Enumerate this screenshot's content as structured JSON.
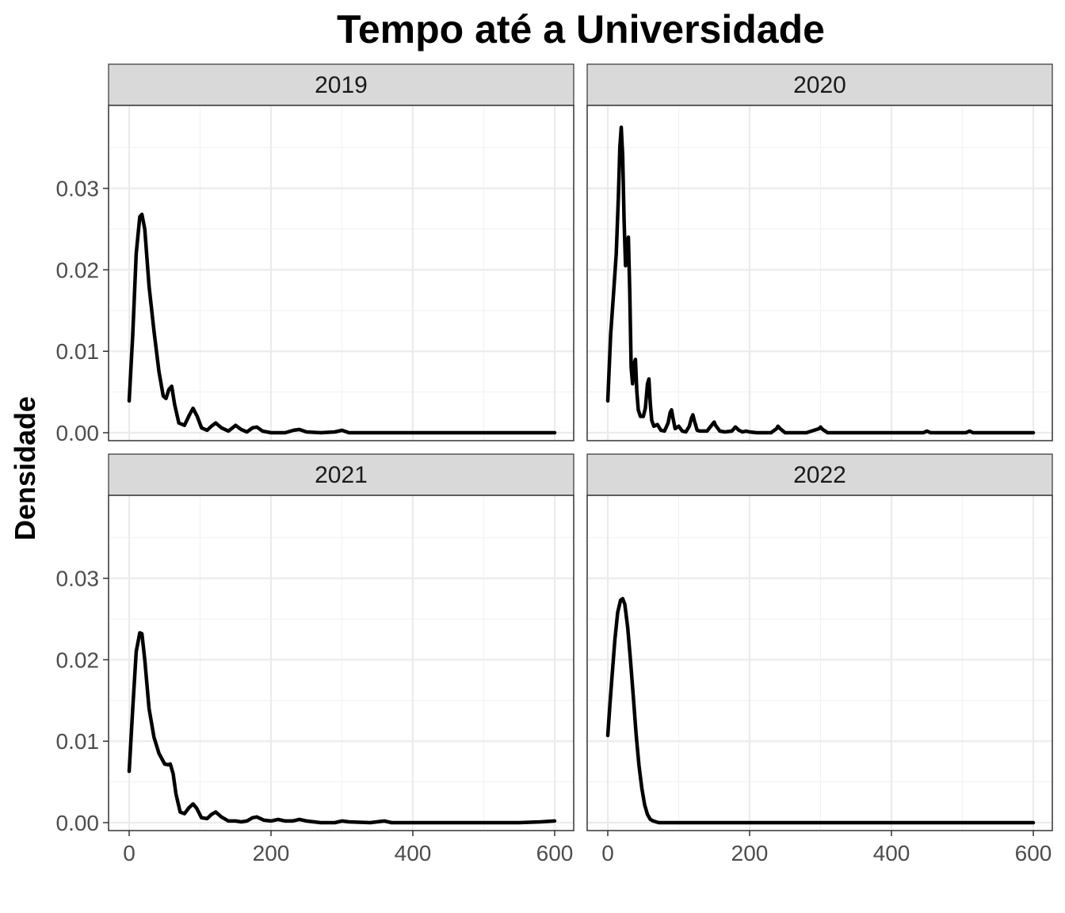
{
  "chart_data": {
    "type": "line",
    "title": "Tempo até a Universidade",
    "xlabel": "",
    "ylabel": "Densidade",
    "xlim": [
      0,
      600
    ],
    "ylim": [
      0,
      0.0385
    ],
    "x_ticks": [
      0,
      200,
      400,
      600
    ],
    "y_ticks": [
      0.0,
      0.01,
      0.02,
      0.03
    ],
    "x_tick_labels": [
      "0",
      "200",
      "400",
      "600"
    ],
    "y_tick_labels": [
      "0.00",
      "0.01",
      "0.02",
      "0.03"
    ],
    "grid": true,
    "theme": "bw",
    "line_color": "#000000",
    "panels": [
      {
        "label": "2019",
        "x": [
          0,
          5,
          10,
          15,
          18,
          22,
          28,
          35,
          42,
          48,
          52,
          56,
          60,
          64,
          70,
          78,
          85,
          90,
          96,
          102,
          110,
          116,
          122,
          130,
          140,
          150,
          158,
          166,
          174,
          180,
          188,
          200,
          220,
          232,
          240,
          250,
          270,
          290,
          300,
          310,
          330,
          360,
          400,
          450,
          500,
          550,
          600
        ],
        "y": [
          0.0039,
          0.012,
          0.022,
          0.0265,
          0.0268,
          0.025,
          0.018,
          0.0125,
          0.0075,
          0.0045,
          0.0042,
          0.0053,
          0.0057,
          0.0035,
          0.0012,
          0.0009,
          0.0022,
          0.003,
          0.002,
          0.0006,
          0.0003,
          0.0008,
          0.0012,
          0.0006,
          0.0002,
          0.0009,
          0.0004,
          0.0001,
          0.0006,
          0.0007,
          0.0002,
          0.0,
          0.0,
          0.0003,
          0.0004,
          0.0001,
          0.0,
          0.0001,
          0.0003,
          0.0,
          0.0,
          0.0,
          0.0,
          0.0,
          0.0,
          0.0,
          0.0
        ]
      },
      {
        "label": "2020",
        "x": [
          0,
          4,
          8,
          12,
          15,
          17,
          19,
          21,
          23,
          25,
          27,
          29,
          31,
          33,
          35,
          37,
          39,
          41,
          43,
          46,
          50,
          53,
          56,
          58,
          60,
          62,
          65,
          70,
          75,
          80,
          85,
          88,
          90,
          92,
          95,
          100,
          105,
          110,
          115,
          118,
          120,
          122,
          126,
          130,
          140,
          148,
          150,
          152,
          158,
          165,
          175,
          180,
          185,
          190,
          195,
          200,
          210,
          230,
          238,
          240,
          243,
          250,
          280,
          298,
          300,
          303,
          310,
          350,
          400,
          445,
          450,
          455,
          505,
          510,
          515,
          550,
          600
        ],
        "y": [
          0.0039,
          0.012,
          0.017,
          0.022,
          0.029,
          0.035,
          0.0375,
          0.034,
          0.026,
          0.0205,
          0.0235,
          0.024,
          0.0175,
          0.008,
          0.006,
          0.0085,
          0.009,
          0.005,
          0.0028,
          0.002,
          0.002,
          0.003,
          0.006,
          0.0066,
          0.0035,
          0.0015,
          0.0008,
          0.001,
          0.0003,
          0.0002,
          0.0012,
          0.0025,
          0.0028,
          0.0018,
          0.0005,
          0.0008,
          0.0002,
          0.0001,
          0.0008,
          0.0018,
          0.0022,
          0.0015,
          0.0003,
          0.0002,
          0.0002,
          0.0011,
          0.0013,
          0.0009,
          0.0002,
          0.0001,
          0.0002,
          0.0007,
          0.0003,
          0.0001,
          0.0002,
          0.0001,
          0.0,
          0.0,
          0.0005,
          0.0008,
          0.0005,
          0.0,
          0.0,
          0.0005,
          0.0007,
          0.0004,
          0.0,
          0.0,
          0.0,
          0.0,
          0.0002,
          0.0,
          0.0,
          0.0002,
          0.0,
          0.0,
          0.0
        ]
      },
      {
        "label": "2021",
        "x": [
          0,
          5,
          10,
          15,
          18,
          22,
          28,
          35,
          42,
          50,
          55,
          58,
          62,
          66,
          72,
          78,
          84,
          90,
          95,
          102,
          110,
          116,
          122,
          130,
          140,
          150,
          158,
          166,
          174,
          180,
          190,
          200,
          210,
          220,
          230,
          240,
          250,
          270,
          290,
          300,
          310,
          340,
          360,
          370,
          400,
          450,
          500,
          550,
          580,
          600
        ],
        "y": [
          0.0063,
          0.014,
          0.021,
          0.0233,
          0.0232,
          0.02,
          0.014,
          0.0105,
          0.0085,
          0.0072,
          0.0071,
          0.0072,
          0.006,
          0.0035,
          0.0013,
          0.0011,
          0.0018,
          0.0023,
          0.0018,
          0.0006,
          0.0005,
          0.001,
          0.0013,
          0.0007,
          0.0002,
          0.0002,
          0.0001,
          0.0002,
          0.0006,
          0.0007,
          0.0003,
          0.0002,
          0.0004,
          0.0002,
          0.0002,
          0.0004,
          0.0002,
          0.0,
          0.0,
          0.0002,
          0.0001,
          0.0,
          0.0002,
          0.0,
          0.0,
          0.0,
          0.0,
          0.0,
          0.0001,
          0.0002
        ]
      },
      {
        "label": "2022",
        "x": [
          0,
          3,
          6,
          10,
          14,
          18,
          21,
          24,
          28,
          32,
          36,
          40,
          44,
          48,
          52,
          56,
          60,
          64,
          68,
          72,
          76,
          80,
          90,
          100,
          200,
          300,
          400,
          500,
          600
        ],
        "y": [
          0.0107,
          0.0145,
          0.018,
          0.0225,
          0.0258,
          0.0273,
          0.0275,
          0.0268,
          0.024,
          0.02,
          0.0155,
          0.0108,
          0.007,
          0.0042,
          0.0022,
          0.001,
          0.0004,
          0.0002,
          0.0001,
          0.0,
          0.0,
          0.0,
          0.0,
          0.0,
          0.0,
          0.0,
          0.0,
          0.0,
          0.0
        ]
      }
    ]
  }
}
